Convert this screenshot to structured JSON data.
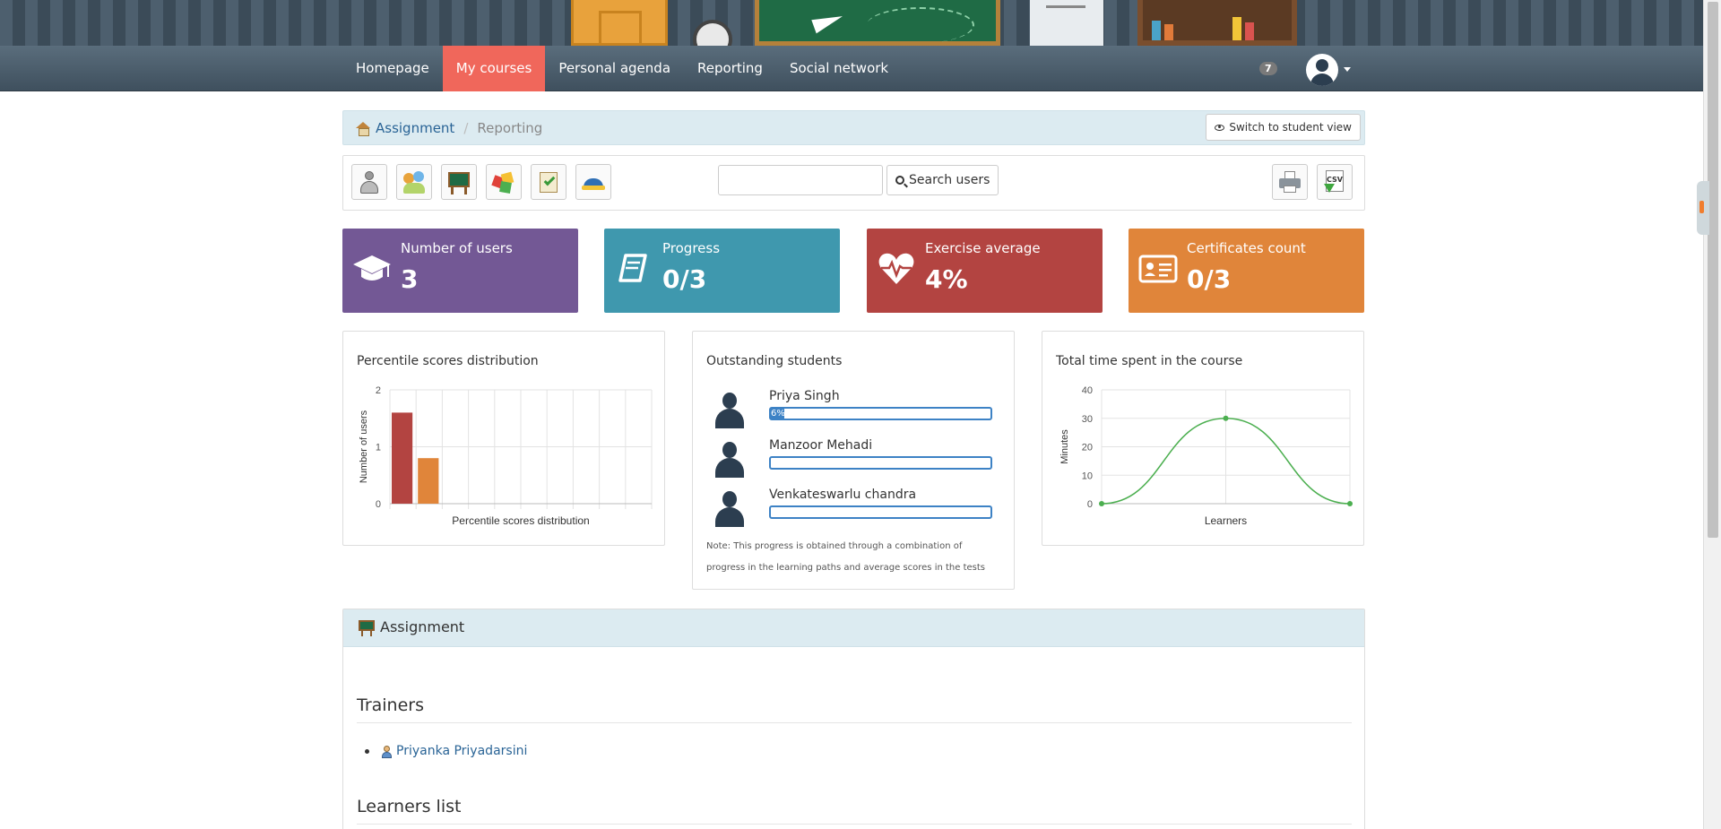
{
  "nav": {
    "items": [
      {
        "label": "Homepage",
        "active": false
      },
      {
        "label": "My courses",
        "active": true
      },
      {
        "label": "Personal agenda",
        "active": false
      },
      {
        "label": "Reporting",
        "active": false
      },
      {
        "label": "Social network",
        "active": false
      }
    ],
    "notification_count": "7"
  },
  "breadcrumb": {
    "home_label": "Assignment",
    "current": "Reporting",
    "switch_view_label": "Switch to student view"
  },
  "toolbar": {
    "icons": [
      "user-icon",
      "group-icon",
      "blackboard-icon",
      "blocks-icon",
      "checklist-icon",
      "graduation-cap-icon"
    ],
    "search_placeholder": "",
    "search_value": "",
    "search_button": "Search users",
    "print_icon": "printer-icon",
    "export_icon": "csv-export-icon",
    "csv_text": "CSV"
  },
  "stats": {
    "users": {
      "label": "Number of users",
      "value": "3",
      "color": "#735895",
      "icon": "graduation-cap-icon"
    },
    "progress": {
      "label": "Progress",
      "value": "0/3",
      "color": "#3f98ae",
      "icon": "book-icon"
    },
    "exercise": {
      "label": "Exercise average",
      "value": "4%",
      "color": "#b34441",
      "icon": "heartbeat-icon"
    },
    "certificates": {
      "label": "Certificates count",
      "value": "0/3",
      "color": "#e0853a",
      "icon": "id-card-icon"
    }
  },
  "distribution_panel": {
    "title": "Percentile scores distribution"
  },
  "outstanding": {
    "title": "Outstanding students",
    "students": [
      {
        "name": "Priya Singh",
        "progress": 6,
        "progress_label": "6%"
      },
      {
        "name": "Manzoor Mehadi",
        "progress": 0,
        "progress_label": ""
      },
      {
        "name": "Venkateswarlu chandra",
        "progress": 0,
        "progress_label": ""
      }
    ],
    "note": "Note: This progress is obtained through a combination of progress in the learning paths and average scores in the tests"
  },
  "time_panel": {
    "title": "Total time spent in the course"
  },
  "chart_data": [
    {
      "type": "bar",
      "title": "",
      "xlabel": "Percentile scores distribution",
      "ylabel": "Number of users",
      "ylim": [
        0,
        2
      ],
      "yticks": [
        0,
        1,
        2
      ],
      "categories": [
        "",
        "",
        "",
        "",
        "",
        "",
        "",
        "",
        "",
        ""
      ],
      "values": [
        1.6,
        0.8,
        0,
        0,
        0,
        0,
        0,
        0,
        0,
        0
      ],
      "bar_colors": [
        "#b34441",
        "#e0853a"
      ],
      "grid": true
    },
    {
      "type": "line",
      "title": "",
      "xlabel": "Learners",
      "ylabel": "Minutes",
      "ylim": [
        0,
        40
      ],
      "yticks": [
        0,
        10,
        20,
        30,
        40
      ],
      "x": [
        0,
        1,
        2
      ],
      "values": [
        0,
        30,
        0
      ],
      "color": "#4caf50",
      "grid": true
    }
  ],
  "assignment": {
    "title": "Assignment",
    "trainers_heading": "Trainers",
    "trainers": [
      "Priyanka Priyadarsini"
    ],
    "learners_heading": "Learners list"
  }
}
